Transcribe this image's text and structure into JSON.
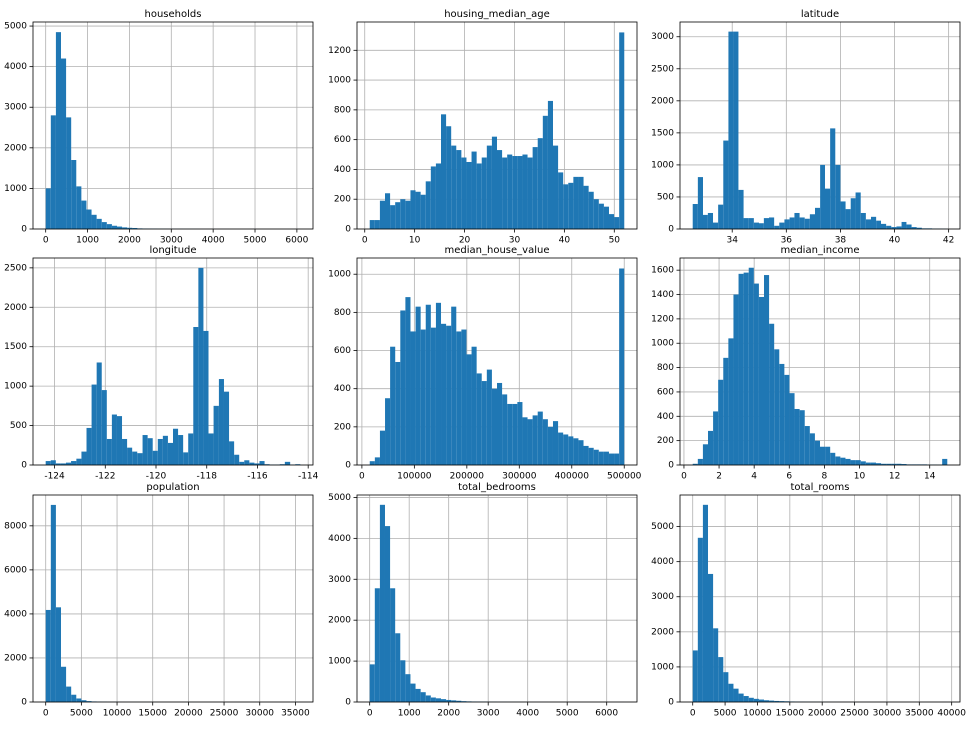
{
  "chart_data": [
    {
      "type": "histogram",
      "title": "households",
      "color": "#1f77b4",
      "grid": true,
      "bins": [
        1,
        122.6,
        244.2,
        365.8,
        487.4,
        609,
        730.6,
        852.2,
        973.8,
        1095.4,
        1217,
        1338.6,
        1460.2,
        1581.8,
        1703.4,
        1825,
        1946.6,
        2068.2,
        2189.8,
        2311.4,
        2433,
        2554.6,
        2676.2,
        2797.8,
        2919.4,
        3041,
        3162.6,
        3284.2,
        3405.8,
        3527.4,
        3649,
        3770.6,
        3892.2,
        4013.8,
        4135.4,
        4257,
        4378.6,
        4500.2,
        4621.8,
        4743.4,
        4865,
        4986.6,
        5108.2,
        5229.8,
        5351.4,
        5473,
        5594.6,
        5716.2,
        5837.8,
        5959.4,
        6081
      ],
      "values": [
        1000,
        2800,
        4850,
        4200,
        2750,
        1700,
        1050,
        700,
        480,
        350,
        250,
        170,
        120,
        80,
        60,
        40,
        30,
        25,
        15,
        12,
        10,
        8,
        6,
        5,
        4,
        3,
        3,
        2,
        2,
        2,
        1,
        1,
        1,
        1,
        1,
        1,
        0,
        0,
        0,
        0,
        1,
        0,
        0,
        0,
        0,
        0,
        0,
        0,
        0,
        1
      ],
      "xlim": [
        -303,
        6385
      ],
      "xticks": [
        0,
        1000,
        2000,
        3000,
        4000,
        5000,
        6000
      ],
      "ylim": [
        0,
        5100
      ],
      "yticks": [
        0,
        1000,
        2000,
        3000,
        4000,
        5000
      ]
    },
    {
      "type": "histogram",
      "title": "housing_median_age",
      "color": "#1f77b4",
      "grid": true,
      "bins": [
        1,
        2.02,
        3.04,
        4.06,
        5.08,
        6.1,
        7.12,
        8.14,
        9.16,
        10.18,
        11.2,
        12.22,
        13.24,
        14.26,
        15.28,
        16.3,
        17.32,
        18.34,
        19.36,
        20.38,
        21.4,
        22.42,
        23.44,
        24.46,
        25.48,
        26.5,
        27.52,
        28.54,
        29.56,
        30.58,
        31.6,
        32.62,
        33.64,
        34.66,
        35.68,
        36.7,
        37.72,
        38.74,
        39.76,
        40.78,
        41.8,
        42.82,
        43.84,
        44.86,
        45.88,
        46.9,
        47.92,
        48.94,
        49.96,
        50.98,
        52
      ],
      "values": [
        60,
        60,
        190,
        240,
        160,
        180,
        200,
        190,
        260,
        250,
        230,
        320,
        420,
        440,
        770,
        690,
        560,
        530,
        480,
        450,
        520,
        440,
        480,
        560,
        620,
        530,
        480,
        500,
        490,
        490,
        500,
        480,
        550,
        610,
        760,
        860,
        560,
        380,
        300,
        310,
        350,
        350,
        290,
        250,
        200,
        170,
        150,
        100,
        80,
        1320
      ],
      "xlim": [
        -1.55,
        54.55
      ],
      "xticks": [
        0,
        10,
        20,
        30,
        40,
        50
      ],
      "ylim": [
        0,
        1390
      ],
      "yticks": [
        0,
        200,
        400,
        600,
        800,
        1000,
        1200
      ]
    },
    {
      "type": "histogram",
      "title": "latitude",
      "color": "#1f77b4",
      "grid": true,
      "bins": [
        32.54,
        32.73,
        32.92,
        33.1,
        33.29,
        33.48,
        33.67,
        33.86,
        34.05,
        34.23,
        34.42,
        34.61,
        34.8,
        34.99,
        35.17,
        35.36,
        35.55,
        35.74,
        35.93,
        36.12,
        36.3,
        36.49,
        36.68,
        36.87,
        37.06,
        37.25,
        37.43,
        37.62,
        37.81,
        38.0,
        38.19,
        38.38,
        38.56,
        38.75,
        38.94,
        39.13,
        39.32,
        39.5,
        39.69,
        39.88,
        40.07,
        40.26,
        40.44,
        40.63,
        40.82,
        41.01,
        41.2,
        41.39,
        41.57,
        41.76,
        41.95
      ],
      "values": [
        390,
        810,
        220,
        250,
        100,
        380,
        1380,
        3080,
        3080,
        610,
        170,
        170,
        100,
        90,
        170,
        180,
        50,
        100,
        150,
        180,
        250,
        180,
        160,
        230,
        330,
        1000,
        630,
        1570,
        1000,
        430,
        310,
        480,
        570,
        250,
        150,
        190,
        130,
        80,
        50,
        30,
        40,
        110,
        70,
        30,
        20,
        10,
        10,
        5,
        5,
        3
      ],
      "xlim": [
        32.07,
        42.42
      ],
      "xticks": [
        34,
        36,
        38,
        40,
        42
      ],
      "ylim": [
        0,
        3230
      ],
      "yticks": [
        0,
        500,
        1000,
        1500,
        2000,
        2500,
        3000
      ]
    },
    {
      "type": "histogram",
      "title": "longitude",
      "color": "#1f77b4",
      "grid": true,
      "bins": [
        -124.35,
        -124.15,
        -123.95,
        -123.75,
        -123.55,
        -123.35,
        -123.14,
        -122.94,
        -122.74,
        -122.54,
        -122.34,
        -122.14,
        -121.94,
        -121.74,
        -121.54,
        -121.34,
        -121.14,
        -120.94,
        -120.74,
        -120.53,
        -120.33,
        -120.13,
        -119.93,
        -119.73,
        -119.53,
        -119.33,
        -119.13,
        -118.93,
        -118.73,
        -118.53,
        -118.33,
        -118.13,
        -117.93,
        -117.73,
        -117.52,
        -117.32,
        -117.12,
        -116.92,
        -116.72,
        -116.52,
        -116.32,
        -116.12,
        -115.92,
        -115.72,
        -115.52,
        -115.32,
        -115.12,
        -114.92,
        -114.71,
        -114.51,
        -114.31
      ],
      "values": [
        50,
        60,
        20,
        20,
        30,
        50,
        80,
        170,
        470,
        1020,
        1300,
        950,
        330,
        640,
        620,
        330,
        220,
        170,
        150,
        380,
        340,
        180,
        330,
        370,
        280,
        460,
        380,
        160,
        400,
        1750,
        2500,
        1700,
        400,
        750,
        1090,
        930,
        300,
        130,
        40,
        60,
        30,
        20,
        50,
        10,
        5,
        5,
        10,
        40,
        5,
        10
      ],
      "xlim": [
        -124.85,
        -113.81
      ],
      "xticks": [
        -124,
        -122,
        -120,
        -118,
        -116,
        -114
      ],
      "ylim": [
        0,
        2625
      ],
      "yticks": [
        0,
        500,
        1000,
        1500,
        2000,
        2500
      ]
    },
    {
      "type": "histogram",
      "title": "median_house_value",
      "color": "#1f77b4",
      "grid": true,
      "bins": [
        14999,
        24699,
        34399,
        44099,
        53799,
        63499,
        73199,
        82899,
        92599,
        102299,
        111999,
        121699,
        131399,
        141099,
        150799,
        160499,
        170199,
        179899,
        189599,
        199299,
        208999,
        218699,
        228399,
        238099,
        247799,
        257499,
        267199,
        276899,
        286599,
        296299,
        305999,
        315699,
        325399,
        335099,
        344799,
        354499,
        364199,
        373899,
        383599,
        393299,
        402999,
        412699,
        422399,
        432099,
        441799,
        451499,
        461199,
        470899,
        480599,
        490299,
        500001
      ],
      "values": [
        20,
        40,
        180,
        350,
        620,
        540,
        810,
        880,
        700,
        830,
        710,
        840,
        720,
        850,
        740,
        730,
        830,
        700,
        710,
        580,
        620,
        480,
        440,
        500,
        400,
        430,
        370,
        320,
        320,
        330,
        250,
        240,
        260,
        280,
        240,
        200,
        230,
        170,
        160,
        150,
        140,
        130,
        100,
        90,
        80,
        70,
        70,
        60,
        60,
        1030
      ],
      "xlim": [
        -9326,
        524326
      ],
      "xticks": [
        0,
        100000,
        200000,
        300000,
        400000,
        500000
      ],
      "ylim": [
        0,
        1085
      ],
      "yticks": [
        0,
        200,
        400,
        600,
        800,
        1000
      ]
    },
    {
      "type": "histogram",
      "title": "median_income",
      "color": "#1f77b4",
      "grid": true,
      "bins": [
        0.5,
        0.79,
        1.08,
        1.37,
        1.66,
        1.95,
        2.24,
        2.53,
        2.82,
        3.11,
        3.4,
        3.69,
        3.98,
        4.27,
        4.56,
        4.85,
        5.14,
        5.43,
        5.72,
        6.01,
        6.3,
        6.59,
        6.88,
        7.17,
        7.46,
        7.75,
        8.04,
        8.33,
        8.62,
        8.91,
        9.2,
        9.49,
        9.78,
        10.07,
        10.36,
        10.65,
        10.94,
        11.23,
        11.52,
        11.81,
        12.1,
        12.39,
        12.68,
        12.97,
        13.26,
        13.55,
        13.84,
        14.13,
        14.42,
        14.71,
        15
      ],
      "values": [
        10,
        50,
        170,
        280,
        440,
        700,
        880,
        1040,
        1400,
        1570,
        1580,
        1620,
        1490,
        1380,
        1560,
        1160,
        950,
        830,
        740,
        590,
        460,
        450,
        320,
        260,
        200,
        150,
        150,
        100,
        70,
        60,
        50,
        40,
        40,
        30,
        20,
        20,
        15,
        10,
        10,
        10,
        10,
        8,
        5,
        5,
        5,
        5,
        3,
        3,
        2,
        50
      ],
      "xlim": [
        -0.225,
        15.725
      ],
      "xticks": [
        0,
        2,
        4,
        6,
        8,
        10,
        12,
        14
      ],
      "ylim": [
        0,
        1700
      ],
      "yticks": [
        0,
        200,
        400,
        600,
        800,
        1000,
        1200,
        1400,
        1600
      ]
    },
    {
      "type": "histogram",
      "title": "population",
      "color": "#1f77b4",
      "grid": true,
      "bins": [
        3,
        716.6,
        1430.2,
        2143.8,
        2857.4,
        3571,
        4284.6,
        4998.2,
        5711.8,
        6425.4,
        7139,
        7852.6,
        8566.2,
        9279.8,
        9993.4,
        10707,
        11420.6,
        12134.2,
        12847.8,
        13561.4,
        14275,
        14988.6,
        15702.2,
        16415.8,
        17129.4,
        17843,
        18556.6,
        19270.2,
        19983.8,
        20697.4,
        21411,
        22124.6,
        22838.2,
        23551.8,
        24265.4,
        24979,
        25692.6,
        26406.2,
        27119.8,
        27833.4,
        28547,
        29260.6,
        29974.2,
        30687.8,
        31401.4,
        32115,
        32828.6,
        33542.2,
        34255.8,
        34969.4,
        35683
      ],
      "values": [
        4180,
        8950,
        4300,
        1600,
        700,
        330,
        160,
        80,
        40,
        25,
        15,
        10,
        5,
        5,
        3,
        2,
        2,
        1,
        1,
        1,
        1,
        0,
        0,
        0,
        0,
        0,
        0,
        0,
        1,
        0,
        0,
        0,
        0,
        0,
        0,
        0,
        0,
        0,
        0,
        0,
        0,
        0,
        0,
        0,
        0,
        0,
        0,
        0,
        0,
        1
      ],
      "xlim": [
        -1781,
        37467
      ],
      "xticks": [
        0,
        5000,
        10000,
        15000,
        20000,
        25000,
        30000,
        35000
      ],
      "ylim": [
        0,
        9400
      ],
      "yticks": [
        0,
        2000,
        4000,
        6000,
        8000
      ]
    },
    {
      "type": "histogram",
      "title": "total_bedrooms",
      "color": "#1f77b4",
      "grid": true,
      "bins": [
        1,
        129.9,
        258.8,
        387.6,
        516.5,
        645.4,
        774.3,
        903.2,
        1032,
        1160.9,
        1289.8,
        1418.7,
        1547.6,
        1676.4,
        1805.3,
        1934.2,
        2063.1,
        2192,
        2320.7,
        2449.7,
        2578.6,
        2707.5,
        2836.4,
        2965.2,
        3094.1,
        3223,
        3351.9,
        3480.8,
        3609.6,
        3738.5,
        3867.4,
        3996.3,
        4125.2,
        4254,
        4382.9,
        4511.8,
        4640.7,
        4769.6,
        4898.4,
        5027.3,
        5156.2,
        5285.1,
        5414,
        5542.7,
        5671.7,
        5800.6,
        5929.5,
        6058.4,
        6187.2,
        6316.1,
        6445
      ],
      "values": [
        920,
        2780,
        4820,
        4300,
        2780,
        1680,
        1020,
        680,
        450,
        320,
        240,
        160,
        110,
        90,
        70,
        50,
        40,
        30,
        20,
        15,
        12,
        10,
        8,
        5,
        5,
        3,
        3,
        2,
        2,
        2,
        1,
        1,
        1,
        1,
        1,
        0,
        0,
        0,
        0,
        0,
        0,
        0,
        0,
        0,
        0,
        0,
        0,
        0,
        0,
        1
      ],
      "xlim": [
        -321,
        6767
      ],
      "xticks": [
        0,
        1000,
        2000,
        3000,
        4000,
        5000,
        6000
      ],
      "ylim": [
        0,
        5060
      ],
      "yticks": [
        0,
        1000,
        2000,
        3000,
        4000,
        5000
      ]
    },
    {
      "type": "histogram",
      "title": "total_rooms",
      "color": "#1f77b4",
      "grid": true,
      "bins": [
        2,
        788.4,
        1574.8,
        2361.2,
        3147.6,
        3934,
        4720.4,
        5506.8,
        6293.2,
        7079.6,
        7866,
        8652.4,
        9438.8,
        10225.2,
        11011.6,
        11798,
        12584.4,
        13370.8,
        14157.2,
        14943.6,
        15730,
        16516.4,
        17302.8,
        18089.2,
        18875.6,
        19662,
        20448.4,
        21234.8,
        22021.2,
        22807.6,
        23594,
        24380.4,
        25166.8,
        25953.2,
        26739.6,
        27526,
        28312.4,
        29098.8,
        29885.2,
        30671.6,
        31458,
        32244.4,
        33030.8,
        33817.2,
        34603.6,
        35390,
        36176.4,
        36962.8,
        37749.2,
        38535.6,
        39320
      ],
      "values": [
        1470,
        4680,
        5620,
        3650,
        2100,
        1280,
        850,
        520,
        380,
        240,
        170,
        120,
        90,
        70,
        50,
        40,
        30,
        25,
        20,
        15,
        10,
        8,
        6,
        5,
        4,
        3,
        3,
        2,
        2,
        1,
        1,
        1,
        1,
        1,
        1,
        0,
        0,
        0,
        0,
        0,
        0,
        0,
        0,
        0,
        0,
        0,
        0,
        0,
        0,
        1
      ],
      "xlim": [
        -1964,
        41286
      ],
      "xticks": [
        0,
        5000,
        10000,
        15000,
        20000,
        25000,
        30000,
        35000,
        40000
      ],
      "ylim": [
        0,
        5900
      ],
      "yticks": [
        0,
        1000,
        2000,
        3000,
        4000,
        5000
      ]
    }
  ]
}
